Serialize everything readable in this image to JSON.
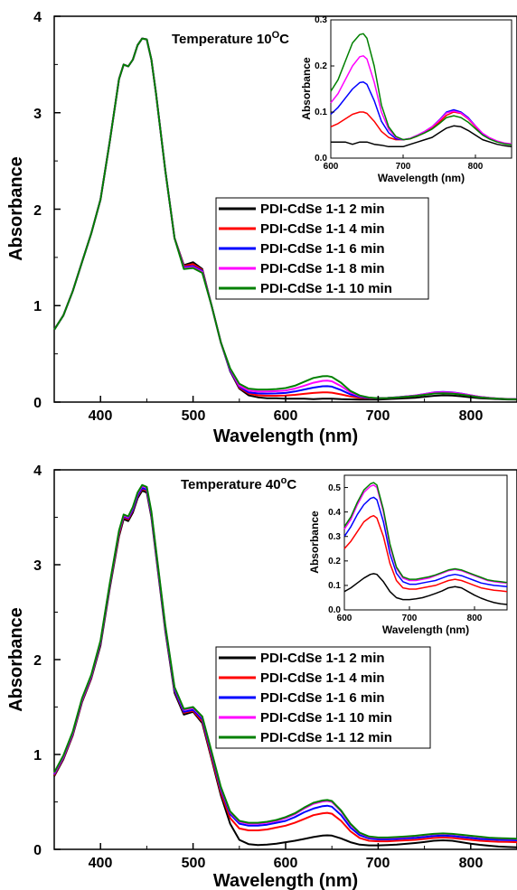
{
  "charts": [
    {
      "title_text": "Temperature 10",
      "title_sup": "O",
      "title_unit": "C",
      "xlabel": "Wavelength (nm)",
      "ylabel": "Absorbance",
      "xticks": [
        "400",
        "500",
        "600",
        "700",
        "800"
      ],
      "yticks": [
        "0",
        "1",
        "2",
        "3",
        "4"
      ],
      "inset": {
        "xlabel": "Wavelength (nm)",
        "ylabel": "Absorbance",
        "xticks": [
          "600",
          "700",
          "800"
        ],
        "yticks": [
          "0.0",
          "0.1",
          "0.2",
          "0.3"
        ]
      },
      "legend": [
        "PDI-CdSe 1-1 2 min",
        "PDI-CdSe 1-1 4 min",
        "PDI-CdSe 1-1 6 min",
        "PDI-CdSe 1-1 8 min",
        "PDI-CdSe 1-1 10 min"
      ]
    },
    {
      "title_text": "Temperature 40",
      "title_sup": "o",
      "title_unit": "C",
      "xlabel": "Wavelength (nm)",
      "ylabel": "Absorbance",
      "xticks": [
        "400",
        "500",
        "600",
        "700",
        "800"
      ],
      "yticks": [
        "0",
        "1",
        "2",
        "3",
        "4"
      ],
      "inset": {
        "xlabel": "Wavelength (nm)",
        "ylabel": "Absorbance",
        "xticks": [
          "600",
          "700",
          "800"
        ],
        "yticks": [
          "0.0",
          "0.1",
          "0.2",
          "0.3",
          "0.4",
          "0.5"
        ]
      },
      "legend": [
        "PDI-CdSe 1-1 2 min",
        "PDI-CdSe 1-1 4 min",
        "PDI-CdSe 1-1 6 min",
        "PDI-CdSe 1-1 10 min",
        "PDI-CdSe 1-1 12 min"
      ]
    }
  ],
  "chart_data": [
    {
      "type": "line",
      "title": "Temperature 10OC",
      "xlabel": "Wavelength (nm)",
      "ylabel": "Absorbance",
      "xlim": [
        350,
        850
      ],
      "ylim": [
        0,
        4
      ],
      "grid": false,
      "legend_position": "center-right",
      "x": [
        350,
        360,
        370,
        380,
        390,
        400,
        410,
        420,
        425,
        430,
        435,
        440,
        445,
        450,
        455,
        460,
        470,
        480,
        490,
        500,
        510,
        520,
        530,
        540,
        550,
        560,
        570,
        580,
        590,
        600,
        610,
        620,
        630,
        640,
        645,
        650,
        660,
        670,
        680,
        690,
        700,
        710,
        720,
        730,
        740,
        750,
        760,
        770,
        780,
        790,
        800,
        810,
        820,
        830,
        840,
        850
      ],
      "series": [
        {
          "name": "PDI-CdSe 1-1 2 min",
          "color": "#000000",
          "values": [
            0.75,
            0.9,
            1.15,
            1.45,
            1.75,
            2.1,
            2.7,
            3.35,
            3.5,
            3.48,
            3.55,
            3.7,
            3.77,
            3.76,
            3.55,
            3.2,
            2.4,
            1.7,
            1.42,
            1.45,
            1.38,
            1.0,
            0.62,
            0.32,
            0.14,
            0.07,
            0.05,
            0.04,
            0.04,
            0.035,
            0.035,
            0.035,
            0.03,
            0.035,
            0.035,
            0.035,
            0.03,
            0.028,
            0.025,
            0.025,
            0.025,
            0.03,
            0.035,
            0.04,
            0.045,
            0.055,
            0.065,
            0.07,
            0.068,
            0.06,
            0.05,
            0.04,
            0.035,
            0.03,
            0.027,
            0.025
          ]
        },
        {
          "name": "PDI-CdSe 1-1 4 min",
          "color": "#ff0000",
          "values": [
            0.75,
            0.9,
            1.15,
            1.45,
            1.75,
            2.1,
            2.7,
            3.35,
            3.5,
            3.48,
            3.55,
            3.7,
            3.77,
            3.76,
            3.55,
            3.2,
            2.4,
            1.7,
            1.41,
            1.43,
            1.37,
            1.0,
            0.62,
            0.33,
            0.15,
            0.09,
            0.07,
            0.066,
            0.066,
            0.068,
            0.075,
            0.085,
            0.095,
            0.1,
            0.1,
            0.097,
            0.08,
            0.058,
            0.045,
            0.04,
            0.04,
            0.042,
            0.048,
            0.055,
            0.065,
            0.078,
            0.093,
            0.1,
            0.097,
            0.085,
            0.068,
            0.052,
            0.042,
            0.036,
            0.032,
            0.03
          ]
        },
        {
          "name": "PDI-CdSe 1-1 6 min",
          "color": "#0000ff",
          "values": [
            0.75,
            0.9,
            1.15,
            1.45,
            1.75,
            2.1,
            2.7,
            3.35,
            3.5,
            3.48,
            3.55,
            3.7,
            3.77,
            3.76,
            3.55,
            3.2,
            2.4,
            1.7,
            1.4,
            1.41,
            1.36,
            1.0,
            0.62,
            0.33,
            0.16,
            0.1,
            0.09,
            0.088,
            0.09,
            0.095,
            0.11,
            0.13,
            0.15,
            0.164,
            0.165,
            0.16,
            0.125,
            0.08,
            0.055,
            0.042,
            0.04,
            0.043,
            0.05,
            0.058,
            0.068,
            0.083,
            0.1,
            0.105,
            0.1,
            0.088,
            0.07,
            0.053,
            0.043,
            0.036,
            0.032,
            0.03
          ]
        },
        {
          "name": "PDI-CdSe 1-1 8 min",
          "color": "#ff00ff",
          "values": [
            0.75,
            0.9,
            1.15,
            1.45,
            1.75,
            2.1,
            2.7,
            3.35,
            3.5,
            3.48,
            3.55,
            3.7,
            3.77,
            3.76,
            3.55,
            3.2,
            2.4,
            1.7,
            1.39,
            1.4,
            1.35,
            1.0,
            0.62,
            0.34,
            0.17,
            0.12,
            0.11,
            0.11,
            0.113,
            0.12,
            0.14,
            0.17,
            0.2,
            0.22,
            0.222,
            0.215,
            0.165,
            0.1,
            0.063,
            0.045,
            0.04,
            0.043,
            0.05,
            0.058,
            0.068,
            0.082,
            0.098,
            0.102,
            0.098,
            0.086,
            0.07,
            0.054,
            0.044,
            0.037,
            0.033,
            0.031
          ]
        },
        {
          "name": "PDI-CdSe 1-1 10 min",
          "color": "#008000",
          "values": [
            0.75,
            0.9,
            1.15,
            1.45,
            1.75,
            2.1,
            2.7,
            3.35,
            3.5,
            3.48,
            3.55,
            3.7,
            3.77,
            3.76,
            3.55,
            3.2,
            2.4,
            1.7,
            1.38,
            1.39,
            1.34,
            1.0,
            0.62,
            0.35,
            0.19,
            0.14,
            0.13,
            0.13,
            0.135,
            0.145,
            0.17,
            0.21,
            0.25,
            0.268,
            0.27,
            0.26,
            0.2,
            0.115,
            0.068,
            0.047,
            0.04,
            0.042,
            0.048,
            0.055,
            0.063,
            0.075,
            0.088,
            0.092,
            0.088,
            0.078,
            0.064,
            0.05,
            0.041,
            0.035,
            0.031,
            0.029
          ]
        }
      ],
      "inset": {
        "xlabel": "Wavelength (nm)",
        "ylabel": "Absorbance",
        "xlim": [
          600,
          850
        ],
        "ylim": [
          0,
          0.3
        ]
      }
    },
    {
      "type": "line",
      "title": "Temperature 40oC",
      "xlabel": "Wavelength (nm)",
      "ylabel": "Absorbance",
      "xlim": [
        350,
        850
      ],
      "ylim": [
        0,
        4
      ],
      "grid": false,
      "legend_position": "center-right",
      "x": [
        350,
        360,
        370,
        380,
        390,
        400,
        410,
        420,
        425,
        430,
        435,
        440,
        445,
        450,
        455,
        460,
        470,
        480,
        490,
        500,
        510,
        520,
        530,
        540,
        550,
        560,
        570,
        580,
        590,
        600,
        610,
        620,
        630,
        640,
        645,
        650,
        660,
        670,
        680,
        690,
        700,
        710,
        720,
        730,
        740,
        750,
        760,
        770,
        780,
        790,
        800,
        810,
        820,
        830,
        840,
        850
      ],
      "series": [
        {
          "name": "PDI-CdSe 1-1 2 min",
          "color": "#000000",
          "values": [
            0.77,
            0.95,
            1.2,
            1.55,
            1.8,
            2.15,
            2.75,
            3.3,
            3.48,
            3.46,
            3.55,
            3.7,
            3.78,
            3.76,
            3.5,
            3.1,
            2.3,
            1.65,
            1.42,
            1.45,
            1.33,
            0.95,
            0.57,
            0.27,
            0.1,
            0.055,
            0.045,
            0.05,
            0.06,
            0.075,
            0.09,
            0.11,
            0.13,
            0.145,
            0.148,
            0.145,
            0.115,
            0.075,
            0.05,
            0.042,
            0.042,
            0.045,
            0.05,
            0.058,
            0.067,
            0.077,
            0.09,
            0.095,
            0.09,
            0.075,
            0.06,
            0.048,
            0.038,
            0.03,
            0.025,
            0.022
          ]
        },
        {
          "name": "PDI-CdSe 1-1 4 min",
          "color": "#ff0000",
          "values": [
            0.78,
            0.96,
            1.21,
            1.56,
            1.81,
            2.17,
            2.77,
            3.32,
            3.5,
            3.48,
            3.57,
            3.72,
            3.8,
            3.78,
            3.52,
            3.12,
            2.32,
            1.67,
            1.44,
            1.46,
            1.35,
            0.97,
            0.6,
            0.33,
            0.22,
            0.2,
            0.2,
            0.21,
            0.23,
            0.25,
            0.28,
            0.32,
            0.36,
            0.38,
            0.385,
            0.375,
            0.3,
            0.19,
            0.12,
            0.09,
            0.085,
            0.085,
            0.09,
            0.095,
            0.1,
            0.11,
            0.12,
            0.125,
            0.12,
            0.11,
            0.1,
            0.09,
            0.085,
            0.08,
            0.078,
            0.075
          ]
        },
        {
          "name": "PDI-CdSe 1-1 6 min",
          "color": "#0000ff",
          "values": [
            0.79,
            0.97,
            1.22,
            1.57,
            1.82,
            2.18,
            2.78,
            3.34,
            3.51,
            3.49,
            3.58,
            3.73,
            3.81,
            3.79,
            3.53,
            3.13,
            2.33,
            1.68,
            1.45,
            1.47,
            1.37,
            1.0,
            0.63,
            0.37,
            0.27,
            0.25,
            0.25,
            0.26,
            0.28,
            0.3,
            0.34,
            0.39,
            0.43,
            0.455,
            0.46,
            0.45,
            0.36,
            0.23,
            0.15,
            0.115,
            0.105,
            0.105,
            0.11,
            0.115,
            0.12,
            0.13,
            0.14,
            0.145,
            0.14,
            0.13,
            0.12,
            0.11,
            0.105,
            0.1,
            0.098,
            0.095
          ]
        },
        {
          "name": "PDI-CdSe 1-1 10 min",
          "color": "#ff00ff",
          "values": [
            0.8,
            0.98,
            1.23,
            1.58,
            1.83,
            2.19,
            2.79,
            3.35,
            3.52,
            3.5,
            3.6,
            3.75,
            3.83,
            3.81,
            3.55,
            3.15,
            2.35,
            1.7,
            1.47,
            1.49,
            1.39,
            1.02,
            0.65,
            0.39,
            0.29,
            0.27,
            0.27,
            0.28,
            0.3,
            0.33,
            0.37,
            0.43,
            0.48,
            0.505,
            0.51,
            0.5,
            0.4,
            0.26,
            0.17,
            0.13,
            0.12,
            0.12,
            0.125,
            0.13,
            0.14,
            0.15,
            0.16,
            0.165,
            0.16,
            0.15,
            0.14,
            0.13,
            0.12,
            0.115,
            0.112,
            0.11
          ]
        },
        {
          "name": "PDI-CdSe 1-1 12 min",
          "color": "#008000",
          "values": [
            0.81,
            0.99,
            1.24,
            1.59,
            1.84,
            2.2,
            2.8,
            3.36,
            3.53,
            3.51,
            3.61,
            3.76,
            3.84,
            3.82,
            3.56,
            3.16,
            2.36,
            1.71,
            1.48,
            1.5,
            1.4,
            1.03,
            0.66,
            0.4,
            0.3,
            0.28,
            0.28,
            0.29,
            0.31,
            0.34,
            0.38,
            0.44,
            0.49,
            0.515,
            0.52,
            0.51,
            0.41,
            0.27,
            0.175,
            0.135,
            0.125,
            0.125,
            0.13,
            0.135,
            0.143,
            0.153,
            0.163,
            0.168,
            0.163,
            0.153,
            0.143,
            0.133,
            0.123,
            0.118,
            0.115,
            0.112
          ]
        }
      ],
      "inset": {
        "xlabel": "Wavelength (nm)",
        "ylabel": "Absorbance",
        "xlim": [
          600,
          850
        ],
        "ylim": [
          0,
          0.55
        ]
      }
    }
  ]
}
